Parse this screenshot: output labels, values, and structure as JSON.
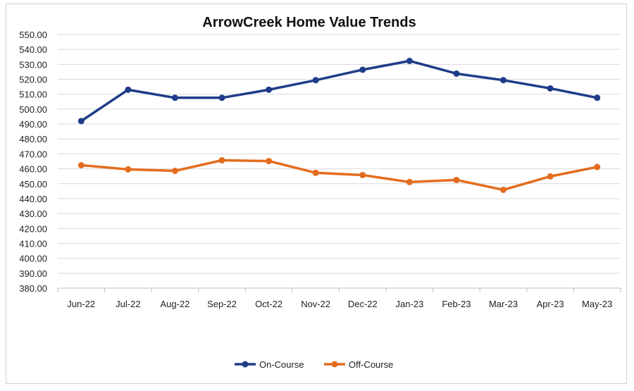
{
  "chart_data": {
    "type": "line",
    "title": "ArrowCreek Home Value Trends",
    "xlabel": "",
    "ylabel": "",
    "ylim": [
      380,
      550
    ],
    "ytick_step": 10,
    "ytick_labels": [
      "380.00",
      "390.00",
      "400.00",
      "410.00",
      "420.00",
      "430.00",
      "440.00",
      "450.00",
      "460.00",
      "470.00",
      "480.00",
      "490.00",
      "500.00",
      "510.00",
      "520.00",
      "530.00",
      "540.00",
      "550.00"
    ],
    "grid": true,
    "legend_position": "bottom",
    "categories": [
      "Jun-22",
      "Jul-22",
      "Aug-22",
      "Sep-22",
      "Oct-22",
      "Nov-22",
      "Dec-22",
      "Jan-23",
      "Feb-23",
      "Mar-23",
      "Apr-23",
      "May-23"
    ],
    "series": [
      {
        "name": "On-Course",
        "color": "#1f3c88",
        "values": [
          492,
          513,
          507.6,
          507.6,
          513,
          519.4,
          526.4,
          532.3,
          523.8,
          519.4,
          513.9,
          507.6
        ]
      },
      {
        "name": "Off-Course",
        "color": "#e46c1e",
        "values": [
          462.4,
          459.6,
          458.6,
          465.7,
          465.2,
          457.3,
          455.8,
          451.1,
          452.5,
          445.9,
          454.9,
          461.2
        ]
      }
    ]
  }
}
